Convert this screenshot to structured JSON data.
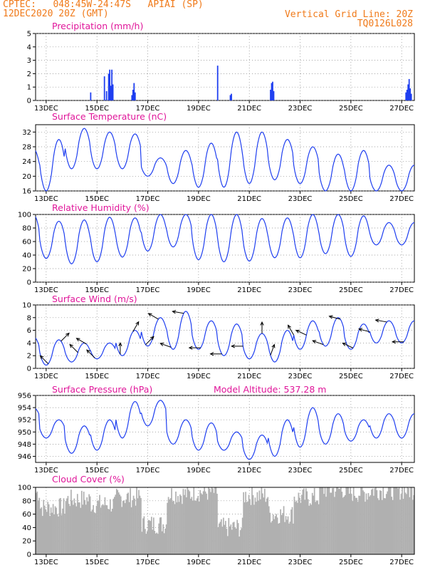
{
  "header": {
    "line1": "CPTEC:   048:45W-24:47S   APIAI (SP)",
    "line2": "12DEC2020 20Z (GMT)",
    "vgrid": "Vertical Grid Line: 20Z",
    "code": "TQ0126L028"
  },
  "colors": {
    "header": "#f07a1a",
    "titles": "#e0169a",
    "line": "#1f3ff0",
    "cloud": "#b0b0b0",
    "arrow": "#000000"
  },
  "chart_data": [
    {
      "type": "bar",
      "title": "Precipitation (mm/h)",
      "x_ticks": [
        "13DEC",
        "15DEC",
        "17DEC",
        "19DEC",
        "21DEC",
        "23DEC",
        "25DEC",
        "27DEC"
      ],
      "x_range_hours": [
        0,
        358
      ],
      "ylim": [
        0,
        5
      ],
      "y_ticks": [
        0,
        1,
        2,
        3,
        4,
        5
      ],
      "grid": true,
      "events": [
        {
          "hour": 52,
          "value": 0.6
        },
        {
          "hour": 65,
          "value": 1.8
        },
        {
          "hour": 67,
          "value": 0.7
        },
        {
          "hour": 69,
          "value": 2.0
        },
        {
          "hour": 70,
          "value": 2.3
        },
        {
          "hour": 71,
          "value": 1.1
        },
        {
          "hour": 72,
          "value": 2.3
        },
        {
          "hour": 73,
          "value": 1.2
        },
        {
          "hour": 91,
          "value": 0.4
        },
        {
          "hour": 92,
          "value": 0.8
        },
        {
          "hour": 93,
          "value": 1.3
        },
        {
          "hour": 94,
          "value": 0.6
        },
        {
          "hour": 172,
          "value": 2.6
        },
        {
          "hour": 184,
          "value": 0.4
        },
        {
          "hour": 185,
          "value": 0.5
        },
        {
          "hour": 222,
          "value": 0.8
        },
        {
          "hour": 223,
          "value": 1.3
        },
        {
          "hour": 224,
          "value": 1.4
        },
        {
          "hour": 225,
          "value": 0.7
        },
        {
          "hour": 350,
          "value": 0.6
        },
        {
          "hour": 351,
          "value": 0.8
        },
        {
          "hour": 352,
          "value": 1.2
        },
        {
          "hour": 353,
          "value": 1.6
        },
        {
          "hour": 354,
          "value": 0.9
        },
        {
          "hour": 355,
          "value": 0.5
        }
      ]
    },
    {
      "type": "line",
      "title": "Surface Temperature (nC)",
      "x_ticks": [
        "13DEC",
        "15DEC",
        "17DEC",
        "19DEC",
        "21DEC",
        "23DEC",
        "25DEC",
        "27DEC"
      ],
      "ylim": [
        16,
        34
      ],
      "y_ticks": [
        16,
        20,
        24,
        28,
        32
      ],
      "grid": true,
      "daily_max": [
        27.5,
        30,
        33,
        32,
        31.5,
        25,
        27,
        29,
        32,
        32,
        30,
        28,
        26,
        27,
        23
      ],
      "daily_min": [
        17,
        16,
        22,
        22,
        22,
        20,
        18,
        17,
        17,
        18,
        19,
        18,
        16,
        16,
        16
      ]
    },
    {
      "type": "line",
      "title": "Relative Humidity (%)",
      "x_ticks": [
        "13DEC",
        "15DEC",
        "17DEC",
        "19DEC",
        "21DEC",
        "23DEC",
        "25DEC",
        "27DEC"
      ],
      "ylim": [
        0,
        100
      ],
      "y_ticks": [
        0,
        20,
        40,
        60,
        80,
        100
      ],
      "grid": true,
      "daily_max": [
        100,
        90,
        92,
        96,
        95,
        100,
        100,
        100,
        100,
        94,
        95,
        100,
        100,
        98,
        88
      ],
      "daily_min": [
        38,
        35,
        27,
        30,
        37,
        46,
        52,
        33,
        30,
        31,
        36,
        36,
        42,
        38,
        55
      ]
    },
    {
      "type": "line",
      "title": "Surface Wind (m/s)",
      "x_ticks": [
        "13DEC",
        "15DEC",
        "17DEC",
        "19DEC",
        "21DEC",
        "23DEC",
        "25DEC",
        "27DEC"
      ],
      "ylim": [
        0,
        10
      ],
      "y_ticks": [
        0,
        2,
        4,
        6,
        8,
        10
      ],
      "grid": true,
      "daily_max": [
        5,
        4.5,
        4,
        4,
        6,
        8,
        9,
        7.5,
        7,
        5.5,
        6,
        7.5,
        8,
        7,
        7.5
      ],
      "daily_min": [
        1,
        0.5,
        1,
        1.5,
        2,
        3.5,
        3,
        3,
        2,
        1.5,
        1,
        3,
        3.5,
        3,
        4
      ],
      "wind_arrows": [
        {
          "hour": 12,
          "dir_deg": 315
        },
        {
          "hour": 24,
          "dir_deg": 45
        },
        {
          "hour": 40,
          "dir_deg": 315
        },
        {
          "hour": 48,
          "dir_deg": 300
        },
        {
          "hour": 56,
          "dir_deg": 315
        },
        {
          "hour": 80,
          "dir_deg": 0
        },
        {
          "hour": 92,
          "dir_deg": 30
        },
        {
          "hour": 104,
          "dir_deg": 45
        },
        {
          "hour": 116,
          "dir_deg": 300
        },
        {
          "hour": 128,
          "dir_deg": 290
        },
        {
          "hour": 140,
          "dir_deg": 280
        },
        {
          "hour": 156,
          "dir_deg": 270
        },
        {
          "hour": 176,
          "dir_deg": 270
        },
        {
          "hour": 196,
          "dir_deg": 270
        },
        {
          "hour": 214,
          "dir_deg": 0
        },
        {
          "hour": 222,
          "dir_deg": 20
        },
        {
          "hour": 244,
          "dir_deg": 330
        },
        {
          "hour": 256,
          "dir_deg": 295
        },
        {
          "hour": 272,
          "dir_deg": 290
        },
        {
          "hour": 288,
          "dir_deg": 285
        },
        {
          "hour": 300,
          "dir_deg": 295
        },
        {
          "hour": 316,
          "dir_deg": 285
        },
        {
          "hour": 332,
          "dir_deg": 280
        },
        {
          "hour": 348,
          "dir_deg": 270
        }
      ]
    },
    {
      "type": "line",
      "title": "Surface Pressure (hPa)",
      "annotation": "Model Altitude: 537.28 m",
      "x_ticks": [
        "13DEC",
        "15DEC",
        "17DEC",
        "19DEC",
        "21DEC",
        "23DEC",
        "25DEC",
        "27DEC"
      ],
      "ylim": [
        945,
        956
      ],
      "y_ticks": [
        946,
        948,
        950,
        952,
        954,
        956
      ],
      "grid": true,
      "daily_max": [
        954,
        952,
        951,
        952,
        955,
        955.2,
        952,
        951.5,
        950,
        949.5,
        952,
        954,
        953,
        952,
        953
      ],
      "daily_min": [
        951,
        949,
        946.5,
        947,
        949,
        951,
        948,
        947,
        947,
        945.5,
        946,
        947.5,
        948,
        948.5,
        949
      ]
    },
    {
      "type": "area",
      "title": "Cloud Cover (%)",
      "x_ticks": [
        "13DEC",
        "15DEC",
        "17DEC",
        "19DEC",
        "21DEC",
        "23DEC",
        "25DEC",
        "27DEC"
      ],
      "ylim": [
        0,
        100
      ],
      "y_ticks": [
        0,
        20,
        40,
        60,
        80,
        100
      ],
      "grid": true,
      "daily_mean": [
        92,
        70,
        82,
        75,
        85,
        45,
        90,
        93,
        40,
        88,
        60,
        85,
        97,
        92,
        96
      ]
    }
  ]
}
